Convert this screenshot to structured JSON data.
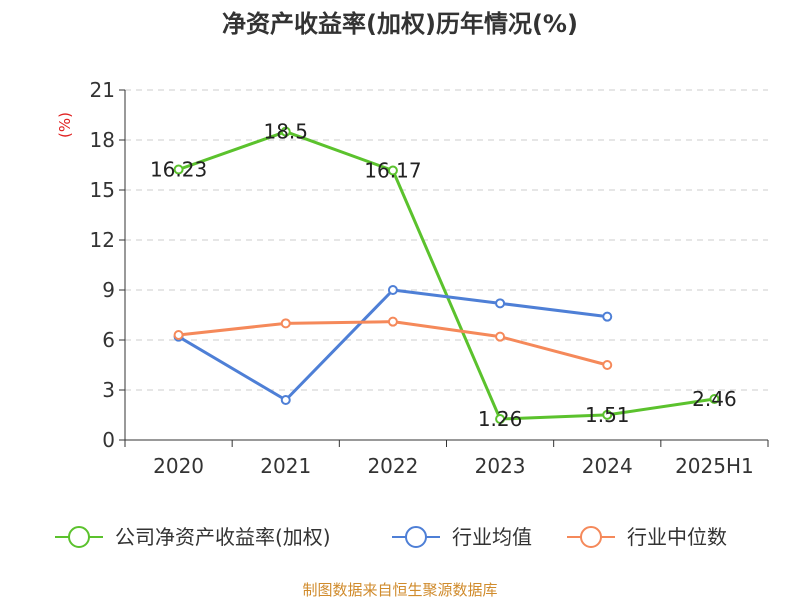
{
  "title": "净资产收益率(加权)历年情况(%)",
  "source_note": "制图数据来自恒生聚源数据库",
  "colors": {
    "series_roe": "#5bc22d",
    "series_avg": "#4e7fd6",
    "series_median": "#f5895a",
    "ylabel": "#e02020",
    "grid": "#cccccc",
    "axis": "#333333",
    "source_note": "#d08b2c"
  },
  "chart_data": {
    "type": "line",
    "title": "净资产收益率(加权)历年情况(%)",
    "ylabel": "(%)",
    "xlabel": "",
    "categories": [
      "2020",
      "2021",
      "2022",
      "2023",
      "2024",
      "2025H1"
    ],
    "ylim": [
      0,
      21
    ],
    "yticks": [
      "0",
      "3",
      "6",
      "9",
      "12",
      "15",
      "18",
      "21"
    ],
    "grid": "horizontal dashed",
    "legend_position": "bottom",
    "series": [
      {
        "name": "公司净资产收益率(加权)",
        "color": "#5bc22d",
        "values": [
          16.23,
          18.5,
          16.17,
          1.26,
          1.51,
          2.46
        ],
        "labels": [
          "16.23",
          "18.5",
          "16.17",
          "1.26",
          "1.51",
          "2.46"
        ]
      },
      {
        "name": "行业均值",
        "color": "#4e7fd6",
        "values": [
          6.2,
          2.4,
          9.0,
          8.2,
          7.4,
          null
        ]
      },
      {
        "name": "行业中位数",
        "color": "#f5895a",
        "values": [
          6.3,
          7.0,
          7.1,
          6.2,
          4.5,
          null
        ]
      }
    ]
  }
}
